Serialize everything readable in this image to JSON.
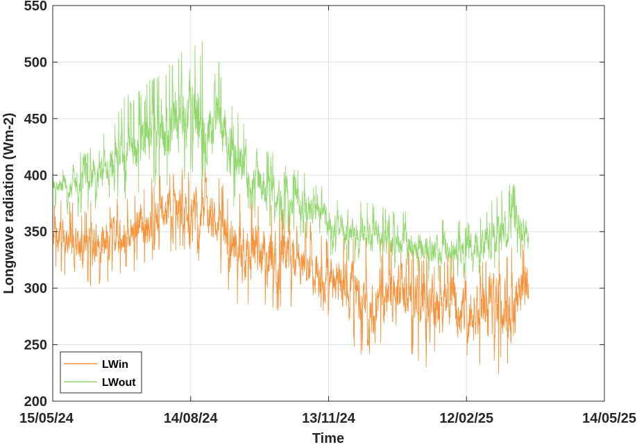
{
  "chart_data": {
    "type": "line",
    "xlabel": "Time",
    "ylabel": "Longwave radiation (Wm-2)",
    "x_ticks": [
      "15/05/24",
      "14/08/24",
      "13/11/24",
      "12/02/25",
      "14/05/25"
    ],
    "xlim": [
      "15/05/24",
      "14/05/25"
    ],
    "ylim": [
      200,
      550
    ],
    "y_ticks": [
      200,
      250,
      300,
      350,
      400,
      450,
      500,
      550
    ],
    "grid": true,
    "legend_position": "bottom-left",
    "x_data_range": [
      "15/05/24",
      "25/03/25"
    ],
    "series": [
      {
        "name": "LWin",
        "color": "#F7923A",
        "x": [
          "15/05/24",
          "01/06/24",
          "15/06/24",
          "01/07/24",
          "15/07/24",
          "01/08/24",
          "14/08/24",
          "01/09/24",
          "15/09/24",
          "01/10/24",
          "15/10/24",
          "01/11/24",
          "13/11/24",
          "01/12/24",
          "15/12/24",
          "01/01/25",
          "15/01/25",
          "01/02/25",
          "12/02/25",
          "01/03/25",
          "15/03/25",
          "25/03/25"
        ],
        "values_low": [
          320,
          290,
          300,
          310,
          320,
          330,
          330,
          310,
          280,
          275,
          270,
          280,
          270,
          240,
          235,
          240,
          230,
          230,
          225,
          225,
          220,
          260
        ],
        "values_high": [
          380,
          375,
          380,
          385,
          395,
          405,
          415,
          400,
          385,
          380,
          370,
          360,
          350,
          345,
          345,
          340,
          335,
          330,
          330,
          335,
          345,
          345
        ]
      },
      {
        "name": "LWout",
        "color": "#92D86E",
        "x": [
          "15/05/24",
          "01/06/24",
          "15/06/24",
          "01/07/24",
          "15/07/24",
          "01/08/24",
          "14/08/24",
          "01/09/24",
          "15/09/24",
          "01/10/24",
          "15/10/24",
          "01/11/24",
          "13/11/24",
          "01/12/24",
          "15/12/24",
          "01/01/25",
          "15/01/25",
          "01/02/25",
          "12/02/25",
          "01/03/25",
          "15/03/25",
          "25/03/25"
        ],
        "values_low": [
          370,
          360,
          365,
          375,
          380,
          385,
          385,
          375,
          365,
          355,
          350,
          340,
          330,
          320,
          315,
          310,
          305,
          305,
          305,
          310,
          320,
          330
        ],
        "values_high": [
          405,
          420,
          430,
          470,
          480,
          505,
          525,
          510,
          460,
          430,
          410,
          400,
          385,
          380,
          375,
          370,
          365,
          360,
          360,
          380,
          395,
          370
        ]
      }
    ]
  }
}
